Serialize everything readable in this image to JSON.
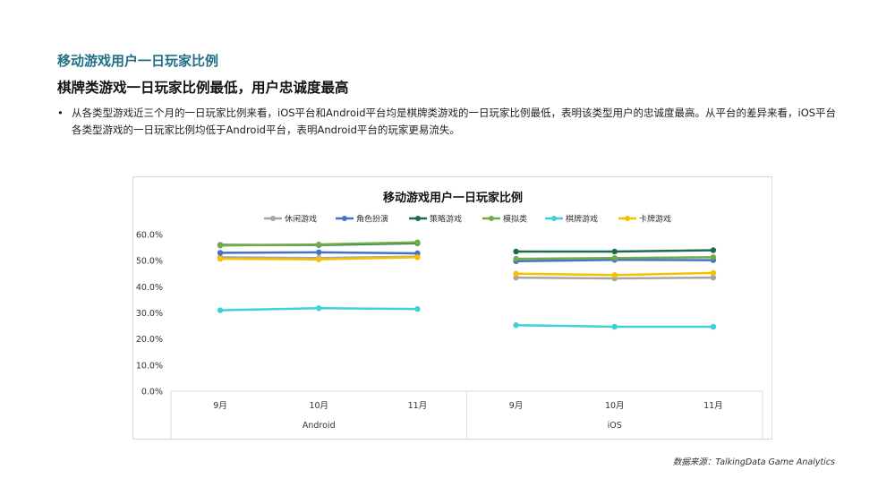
{
  "header": {
    "title": "移动游戏用户一日玩家比例",
    "subtitle": "棋牌类游戏一日玩家比例最低，用户忠诚度最高"
  },
  "bullet": {
    "marker": "•",
    "text": "从各类型游戏近三个月的一日玩家比例来看，iOS平台和Android平台均是棋牌类游戏的一日玩家比例最低，表明该类型用户的忠诚度最高。从平台的差异来看，iOS平台各类型游戏的一日玩家比例均低于Android平台，表明Android平台的玩家更易流失。"
  },
  "source": "数据来源：TalkingData  Game Analytics",
  "chart_data": {
    "type": "line",
    "title": "移动游戏用户一日玩家比例",
    "groups": [
      {
        "name": "Android",
        "categories": [
          "9月",
          "10月",
          "11月"
        ]
      },
      {
        "name": "iOS",
        "categories": [
          "9月",
          "10月",
          "11月"
        ]
      }
    ],
    "ylim": [
      0,
      60
    ],
    "yticks": [
      "0.0%",
      "10.0%",
      "20.0%",
      "30.0%",
      "40.0%",
      "50.0%",
      "60.0%"
    ],
    "legend_position": "top",
    "grid": false,
    "series": [
      {
        "name": "休闲游戏",
        "color": "#a5a5a5",
        "android": [
          51.3,
          51.0,
          51.5
        ],
        "ios": [
          43.5,
          43.2,
          43.5
        ]
      },
      {
        "name": "角色扮演",
        "color": "#4472c4",
        "android": [
          53.0,
          53.2,
          52.8
        ],
        "ios": [
          49.8,
          50.3,
          50.2
        ]
      },
      {
        "name": "策略游戏",
        "color": "#1e6b52",
        "android": [
          56.0,
          56.0,
          56.7
        ],
        "ios": [
          53.5,
          53.5,
          54.0
        ]
      },
      {
        "name": "模拟类",
        "color": "#70ad47",
        "android": [
          55.8,
          56.2,
          57.0
        ],
        "ios": [
          50.7,
          51.0,
          51.3
        ]
      },
      {
        "name": "棋牌游戏",
        "color": "#3fd0d8",
        "android": [
          31.0,
          31.8,
          31.5
        ],
        "ios": [
          25.3,
          24.7,
          24.7
        ]
      },
      {
        "name": "卡牌游戏",
        "color": "#f5c000",
        "android": [
          50.7,
          50.5,
          51.3
        ],
        "ios": [
          45.0,
          44.5,
          45.3
        ]
      }
    ]
  }
}
